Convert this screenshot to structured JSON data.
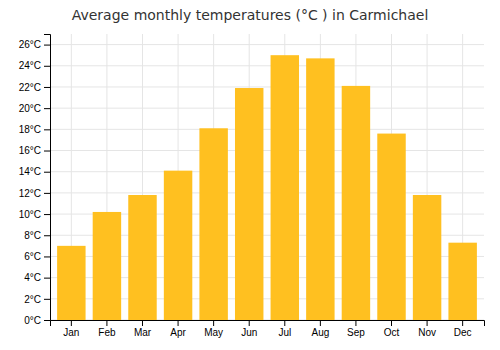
{
  "chart_data": {
    "type": "bar",
    "title": "Average monthly temperatures (°C ) in Carmichael",
    "categories": [
      "Jan",
      "Feb",
      "Mar",
      "Apr",
      "May",
      "Jun",
      "Jul",
      "Aug",
      "Sep",
      "Oct",
      "Nov",
      "Dec"
    ],
    "values": [
      7.0,
      10.2,
      11.8,
      14.1,
      18.1,
      21.9,
      25.0,
      24.7,
      22.1,
      17.6,
      11.8,
      7.3
    ],
    "color": "#FFC020",
    "ylim": [
      0,
      27
    ],
    "yticks": [
      {
        "value": 0,
        "label": "0°C"
      },
      {
        "value": 2,
        "label": "2°C"
      },
      {
        "value": 4,
        "label": "4°C"
      },
      {
        "value": 6,
        "label": "6°C"
      },
      {
        "value": 8,
        "label": "8°C"
      },
      {
        "value": 10,
        "label": "10°C"
      },
      {
        "value": 12,
        "label": "12°C"
      },
      {
        "value": 14,
        "label": "14°C"
      },
      {
        "value": 16,
        "label": "16°C"
      },
      {
        "value": 18,
        "label": "18°C"
      },
      {
        "value": 20,
        "label": "20°C"
      },
      {
        "value": 22,
        "label": "22°C"
      },
      {
        "value": 24,
        "label": "24°C"
      },
      {
        "value": 26,
        "label": "26°C"
      }
    ],
    "grid": true
  }
}
